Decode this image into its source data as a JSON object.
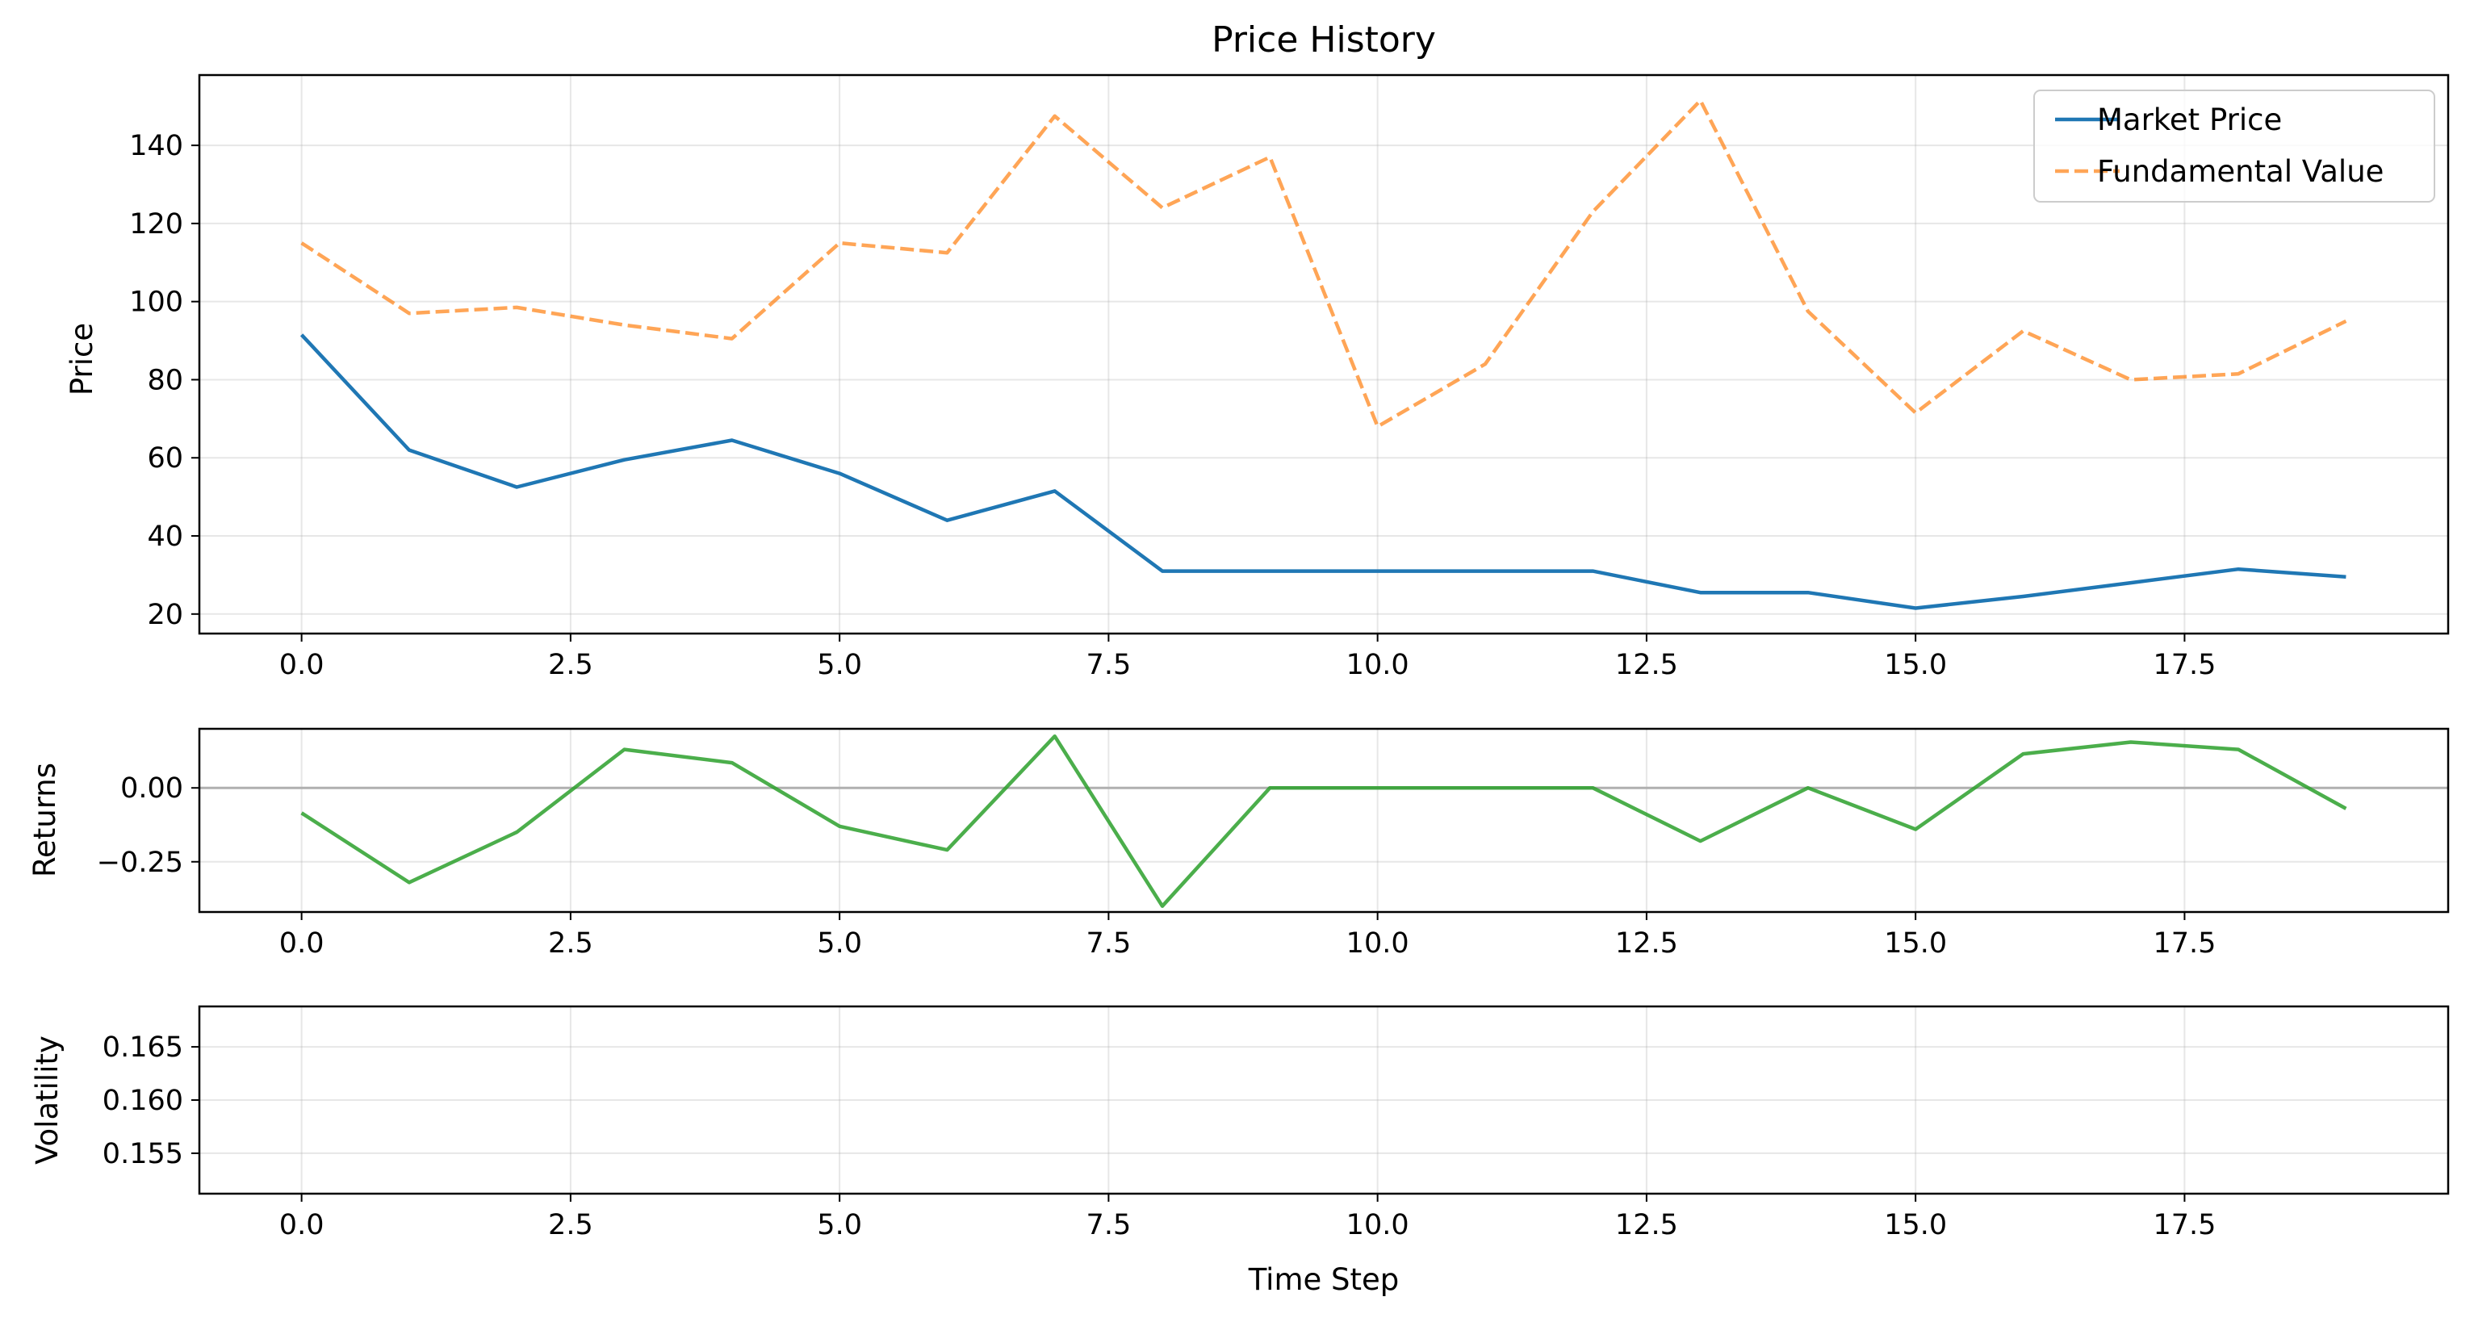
{
  "chart_data": [
    {
      "type": "line",
      "title": "Price History",
      "xlabel": "",
      "ylabel": "Price",
      "xlim": [
        -0.95,
        19.95
      ],
      "ylim": [
        15,
        158
      ],
      "xticks": [
        0,
        2.5,
        5,
        7.5,
        10,
        12.5,
        15,
        17.5
      ],
      "xtick_labels": [
        "0.0",
        "2.5",
        "5.0",
        "7.5",
        "10.0",
        "12.5",
        "15.0",
        "17.5"
      ],
      "yticks": [
        20,
        40,
        60,
        80,
        100,
        120,
        140
      ],
      "ytick_labels": [
        "20",
        "40",
        "60",
        "80",
        "100",
        "120",
        "140"
      ],
      "grid": true,
      "legend_position": "top-right",
      "x": [
        0,
        1,
        2,
        3,
        4,
        5,
        6,
        7,
        8,
        9,
        10,
        11,
        12,
        13,
        14,
        15,
        16,
        17,
        18,
        19
      ],
      "series": [
        {
          "name": "Market Price",
          "color": "#1f77b4",
          "style": "solid",
          "values": [
            91.5,
            62.0,
            52.5,
            59.5,
            64.5,
            56.0,
            44.0,
            51.5,
            31.0,
            31.0,
            31.0,
            31.0,
            31.0,
            25.5,
            25.5,
            21.5,
            24.5,
            28.0,
            31.5,
            29.5
          ]
        },
        {
          "name": "Fundamental Value",
          "color": "#ff7f0e",
          "style": "dashed",
          "values": [
            115.0,
            97.0,
            98.5,
            94.0,
            90.5,
            115.0,
            112.5,
            147.5,
            124.0,
            137.0,
            68.0,
            84.0,
            123.0,
            151.5,
            97.5,
            71.5,
            92.5,
            80.0,
            81.5,
            95.0
          ]
        }
      ]
    },
    {
      "type": "line",
      "title": "",
      "xlabel": "",
      "ylabel": "Returns",
      "xlim": [
        -0.95,
        19.95
      ],
      "ylim": [
        -0.42,
        0.2
      ],
      "xticks": [
        0,
        2.5,
        5,
        7.5,
        10,
        12.5,
        15,
        17.5
      ],
      "xtick_labels": [
        "0.0",
        "2.5",
        "5.0",
        "7.5",
        "10.0",
        "12.5",
        "15.0",
        "17.5"
      ],
      "yticks": [
        -0.25,
        0.0
      ],
      "ytick_labels": [
        "−0.25",
        "0.00"
      ],
      "grid": true,
      "reference_line": {
        "y": 0,
        "color": "#b0b0b0"
      },
      "x": [
        0,
        1,
        2,
        3,
        4,
        5,
        6,
        7,
        8,
        9,
        10,
        11,
        12,
        13,
        14,
        15,
        16,
        17,
        18,
        19
      ],
      "series": [
        {
          "color": "#2ca02c",
          "style": "solid",
          "values": [
            -0.085,
            -0.32,
            -0.15,
            0.13,
            0.085,
            -0.13,
            -0.21,
            0.175,
            -0.4,
            0.0,
            0.0,
            0.0,
            0.0,
            -0.18,
            0.0,
            -0.14,
            0.115,
            0.155,
            0.13,
            -0.07
          ]
        }
      ]
    },
    {
      "type": "line",
      "title": "",
      "xlabel": "Time Step",
      "ylabel": "Volatility",
      "xlim": [
        -0.95,
        19.95
      ],
      "ylim": [
        0.1512,
        0.1688
      ],
      "xticks": [
        0,
        2.5,
        5,
        7.5,
        10,
        12.5,
        15,
        17.5
      ],
      "xtick_labels": [
        "0.0",
        "2.5",
        "5.0",
        "7.5",
        "10.0",
        "12.5",
        "15.0",
        "17.5"
      ],
      "yticks": [
        0.155,
        0.16,
        0.165
      ],
      "ytick_labels": [
        "0.155",
        "0.160",
        "0.165"
      ],
      "grid": true,
      "series": []
    }
  ]
}
